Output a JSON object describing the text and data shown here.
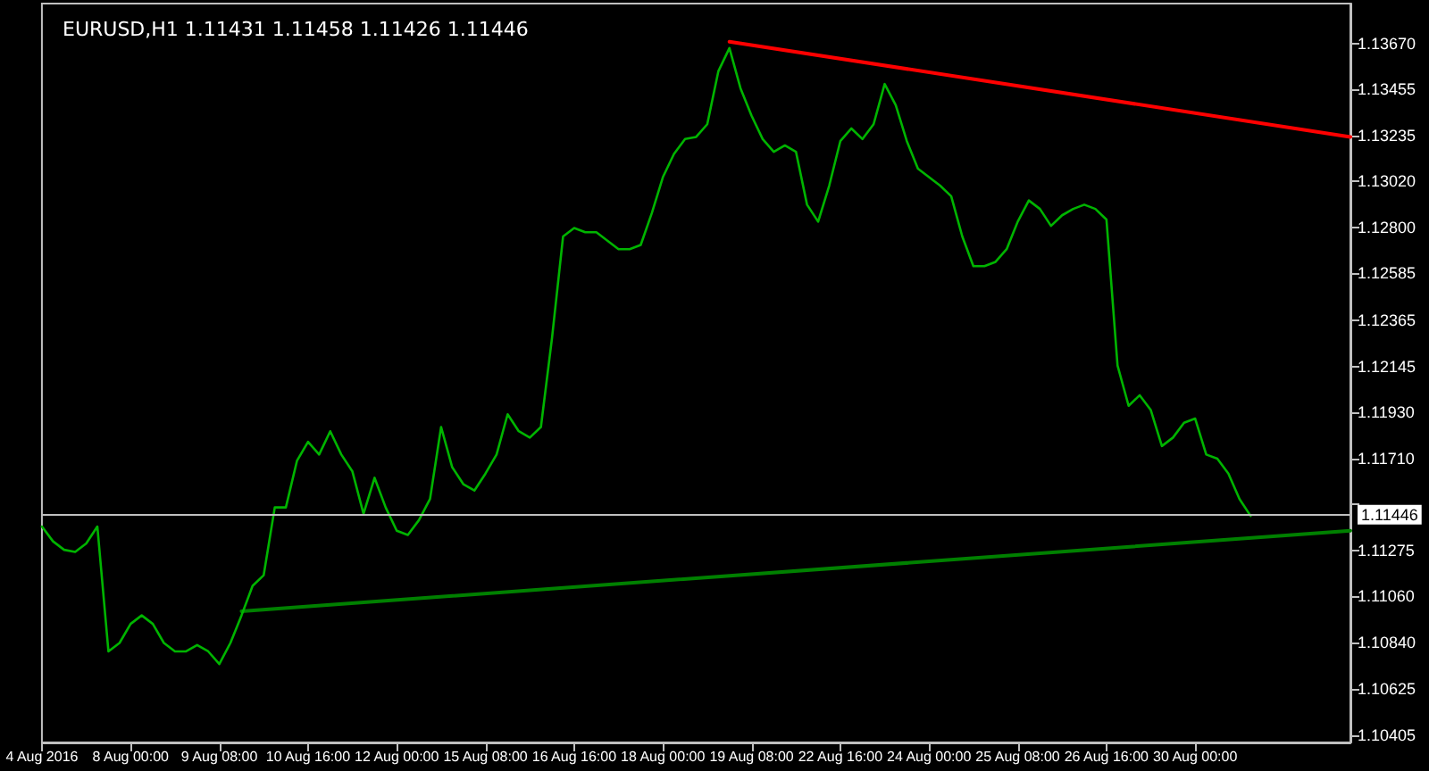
{
  "chart_data": {
    "type": "line",
    "title": "EURUSD,H1 1.11431 1.11458 1.11426 1.11446",
    "categories": [
      "4 Aug 2016",
      null,
      null,
      null,
      null,
      null,
      null,
      null,
      "8 Aug 00:00",
      null,
      null,
      null,
      null,
      null,
      null,
      null,
      "9 Aug 08:00",
      null,
      null,
      null,
      null,
      null,
      null,
      null,
      "10 Aug 16:00",
      null,
      null,
      null,
      null,
      null,
      null,
      null,
      "12 Aug 00:00",
      null,
      null,
      null,
      null,
      null,
      null,
      null,
      "15 Aug 08:00",
      null,
      null,
      null,
      null,
      null,
      null,
      null,
      "16 Aug 16:00",
      null,
      null,
      null,
      null,
      null,
      null,
      null,
      "18 Aug 00:00",
      null,
      null,
      null,
      null,
      null,
      null,
      null,
      "19 Aug 08:00",
      null,
      null,
      null,
      null,
      null,
      null,
      null,
      "22 Aug 16:00",
      null,
      null,
      null,
      null,
      null,
      null,
      null,
      "24 Aug 00:00",
      null,
      null,
      null,
      null,
      null,
      null,
      null,
      "25 Aug 08:00",
      null,
      null,
      null,
      null,
      null,
      null,
      null,
      "26 Aug 16:00",
      null,
      null,
      null,
      null,
      null,
      null,
      null,
      "30 Aug 00:00",
      null,
      null,
      null,
      null,
      null,
      null,
      null,
      null,
      null,
      null,
      null,
      null,
      null,
      null
    ],
    "series": [
      {
        "color": "#00b400",
        "values": [
          1.1139,
          1.1132,
          1.1128,
          1.1127,
          1.1131,
          1.1139,
          1.108,
          1.1084,
          1.1093,
          1.1097,
          1.1093,
          1.1084,
          1.108,
          1.108,
          1.1083,
          1.108,
          1.1074,
          1.1084,
          1.1097,
          1.1111,
          1.1116,
          1.1148,
          1.1148,
          1.117,
          1.1179,
          1.1173,
          1.1184,
          1.1173,
          1.1165,
          1.1145,
          1.1162,
          1.1148,
          1.1137,
          1.1135,
          1.1142,
          1.1152,
          1.1186,
          1.1167,
          1.1159,
          1.1156,
          1.1164,
          1.1173,
          1.1192,
          1.1184,
          1.1181,
          1.1186,
          1.1228,
          1.1276,
          1.128,
          1.1278,
          1.1278,
          1.1274,
          1.127,
          1.127,
          1.1272,
          1.1287,
          1.1304,
          1.1315,
          1.1322,
          1.1323,
          1.1329,
          1.1354,
          1.1365,
          1.1346,
          1.1333,
          1.1322,
          1.1316,
          1.1319,
          1.1316,
          1.1291,
          1.1283,
          1.13,
          1.1321,
          1.1327,
          1.1322,
          1.1329,
          1.1348,
          1.1338,
          1.1321,
          1.1308,
          1.1304,
          1.13,
          1.1295,
          1.1276,
          1.1262,
          1.1262,
          1.1264,
          1.127,
          1.1283,
          1.1293,
          1.1289,
          1.1281,
          1.1286,
          1.1289,
          1.1291,
          1.1289,
          1.1284,
          1.1215,
          1.1196,
          1.1201,
          1.1194,
          1.1177,
          1.1181,
          1.1188,
          1.119,
          1.1173,
          1.1171,
          1.1164,
          1.1152,
          1.1144,
          null,
          null,
          null,
          null,
          null,
          null,
          null,
          null,
          null
        ]
      },
      {
        "type": "line",
        "color": "#ff0000",
        "values": [
          null,
          null,
          null,
          null,
          null,
          null,
          null,
          null,
          null,
          null,
          null,
          null,
          null,
          null,
          null,
          null,
          null,
          null,
          null,
          null,
          null,
          null,
          null,
          null,
          null,
          null,
          null,
          null,
          null,
          null,
          null,
          null,
          null,
          null,
          null,
          null,
          null,
          null,
          null,
          null,
          null,
          null,
          null,
          null,
          null,
          null,
          null,
          null,
          null,
          null,
          null,
          null,
          null,
          null,
          null,
          null,
          null,
          null,
          null,
          null,
          null,
          null,
          1.1368,
          null,
          null,
          null,
          null,
          null,
          null,
          null,
          null,
          null,
          null,
          null,
          null,
          null,
          null,
          null,
          null,
          null,
          null,
          null,
          null,
          null,
          null,
          null,
          null,
          null,
          null,
          null,
          null,
          null,
          null,
          null,
          null,
          null,
          null,
          null,
          null,
          null,
          null,
          null,
          null,
          null,
          null,
          null,
          null,
          null,
          null,
          null,
          null,
          null,
          null,
          null,
          null,
          null,
          null,
          null,
          1.1323
        ]
      },
      {
        "type": "line",
        "color": "#008000",
        "values": [
          null,
          null,
          null,
          null,
          null,
          null,
          null,
          null,
          null,
          null,
          null,
          null,
          null,
          null,
          null,
          null,
          null,
          null,
          1.1099,
          null,
          null,
          null,
          null,
          null,
          null,
          null,
          null,
          null,
          null,
          null,
          null,
          null,
          null,
          null,
          null,
          null,
          null,
          null,
          null,
          null,
          null,
          null,
          null,
          null,
          null,
          null,
          null,
          null,
          null,
          null,
          null,
          null,
          null,
          null,
          null,
          null,
          null,
          null,
          null,
          null,
          null,
          null,
          null,
          null,
          null,
          null,
          null,
          null,
          null,
          null,
          null,
          null,
          null,
          null,
          null,
          null,
          null,
          null,
          null,
          null,
          null,
          null,
          null,
          null,
          null,
          null,
          null,
          null,
          null,
          null,
          null,
          null,
          null,
          null,
          null,
          null,
          null,
          null,
          null,
          null,
          null,
          null,
          null,
          null,
          null,
          null,
          null,
          null,
          null,
          null,
          null,
          null,
          null,
          null,
          null,
          null,
          null,
          null,
          1.1137
        ]
      }
    ],
    "ylim": [
      1.1037,
      1.1386
    ],
    "yticks": [
      {
        "value": 1.1367,
        "label": "1.13670"
      },
      {
        "value": 1.13455,
        "label": "1.13455"
      },
      {
        "value": 1.13235,
        "label": "1.13235"
      },
      {
        "value": 1.1302,
        "label": "1.13020"
      },
      {
        "value": 1.128,
        "label": "1.12800"
      },
      {
        "value": 1.12585,
        "label": "1.12585"
      },
      {
        "value": 1.12365,
        "label": "1.12365"
      },
      {
        "value": 1.12145,
        "label": "1.12145"
      },
      {
        "value": 1.1193,
        "label": "1.11930"
      },
      {
        "value": 1.1171,
        "label": "1.11710"
      },
      {
        "value": 1.11495,
        "label": null
      },
      {
        "value": 1.11275,
        "label": "1.11275"
      },
      {
        "value": 1.1106,
        "label": "1.11060"
      },
      {
        "value": 1.1084,
        "label": "1.10840"
      },
      {
        "value": 1.10625,
        "label": "1.10625"
      },
      {
        "value": 1.10405,
        "label": "1.10405"
      }
    ],
    "ref_lines": [
      {
        "axis": "y",
        "value": 1.11446,
        "label": "1.11446",
        "color": "#c0c0c0"
      }
    ],
    "grid": false,
    "marker": "none",
    "line_style": "solid"
  }
}
